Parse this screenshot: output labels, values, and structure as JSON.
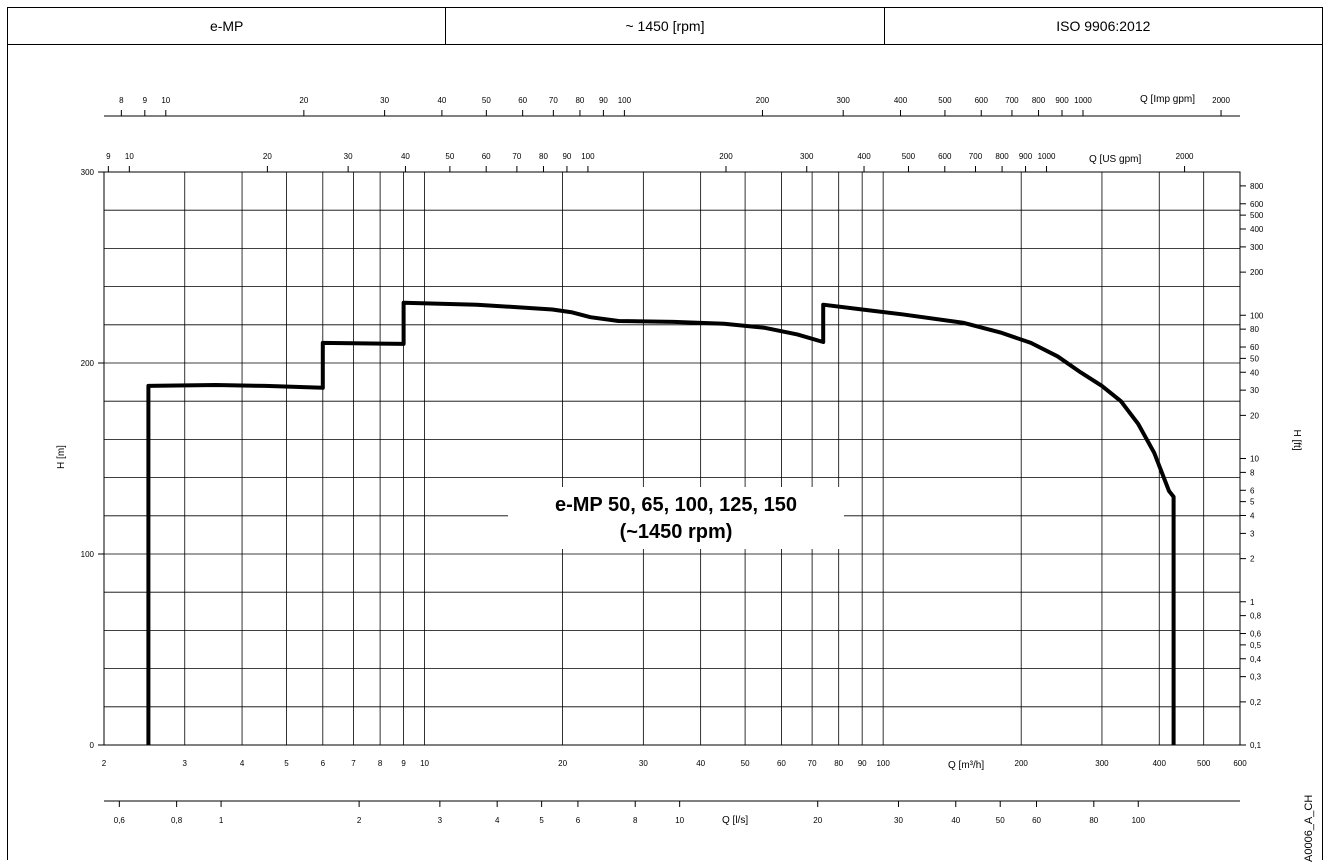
{
  "header": {
    "model": "e-MP",
    "speed": "~ 1450 [rpm]",
    "standard": "ISO 9906:2012"
  },
  "drawing_code": "A0006_A_CH",
  "chart_data": {
    "type": "line",
    "title_line1": "e-MP 50, 65, 100, 125, 150",
    "title_line2": "(~1450 rpm)",
    "x_scale": "log",
    "y_scale": "linear",
    "xlim": [
      2,
      600
    ],
    "ylim": [
      0,
      300
    ],
    "grid": true,
    "xlabel": "Q [m³/h]",
    "ylabel": "H [m]",
    "y2label": "H [ft]",
    "imp_label": "Q [Imp gpm]",
    "us_label": "Q [US gpm]",
    "ls_label": "Q [l/s]",
    "x_ticks": [
      {
        "v": 2,
        "l": "2"
      },
      {
        "v": 3,
        "l": "3"
      },
      {
        "v": 4,
        "l": "4"
      },
      {
        "v": 5,
        "l": "5"
      },
      {
        "v": 6,
        "l": "6"
      },
      {
        "v": 7,
        "l": "7"
      },
      {
        "v": 8,
        "l": "8"
      },
      {
        "v": 9,
        "l": "9"
      },
      {
        "v": 10,
        "l": "10"
      },
      {
        "v": 20,
        "l": "20"
      },
      {
        "v": 30,
        "l": "30"
      },
      {
        "v": 40,
        "l": "40"
      },
      {
        "v": 50,
        "l": "50"
      },
      {
        "v": 60,
        "l": "60"
      },
      {
        "v": 70,
        "l": "70"
      },
      {
        "v": 80,
        "l": "80"
      },
      {
        "v": 90,
        "l": "90"
      },
      {
        "v": 100,
        "l": "100"
      },
      {
        "v": 200,
        "l": "200"
      },
      {
        "v": 300,
        "l": "300"
      },
      {
        "v": 400,
        "l": "400"
      },
      {
        "v": 500,
        "l": "500"
      },
      {
        "v": 600,
        "l": "600"
      }
    ],
    "y_ticks": [
      {
        "v": 0,
        "l": "0"
      },
      {
        "v": 100,
        "l": "100"
      },
      {
        "v": 200,
        "l": "200"
      },
      {
        "v": 300,
        "l": "300"
      }
    ],
    "y_grid": [
      0,
      20,
      40,
      60,
      80,
      100,
      120,
      140,
      160,
      180,
      200,
      220,
      240,
      260,
      280,
      300
    ],
    "imp_ticks": [
      {
        "v": 8,
        "l": "8"
      },
      {
        "v": 9,
        "l": "9"
      },
      {
        "v": 10,
        "l": "10"
      },
      {
        "v": 20,
        "l": "20"
      },
      {
        "v": 30,
        "l": "30"
      },
      {
        "v": 40,
        "l": "40"
      },
      {
        "v": 50,
        "l": "50"
      },
      {
        "v": 60,
        "l": "60"
      },
      {
        "v": 70,
        "l": "70"
      },
      {
        "v": 80,
        "l": "80"
      },
      {
        "v": 90,
        "l": "90"
      },
      {
        "v": 100,
        "l": "100"
      },
      {
        "v": 200,
        "l": "200"
      },
      {
        "v": 300,
        "l": "300"
      },
      {
        "v": 400,
        "l": "400"
      },
      {
        "v": 500,
        "l": "500"
      },
      {
        "v": 600,
        "l": "600"
      },
      {
        "v": 700,
        "l": "700"
      },
      {
        "v": 800,
        "l": "800"
      },
      {
        "v": 900,
        "l": "900"
      },
      {
        "v": 1000,
        "l": "1000"
      },
      {
        "v": 2000,
        "l": "2000"
      }
    ],
    "us_ticks": [
      {
        "v": 9,
        "l": "9"
      },
      {
        "v": 10,
        "l": "10"
      },
      {
        "v": 20,
        "l": "20"
      },
      {
        "v": 30,
        "l": "30"
      },
      {
        "v": 40,
        "l": "40"
      },
      {
        "v": 50,
        "l": "50"
      },
      {
        "v": 60,
        "l": "60"
      },
      {
        "v": 70,
        "l": "70"
      },
      {
        "v": 80,
        "l": "80"
      },
      {
        "v": 90,
        "l": "90"
      },
      {
        "v": 100,
        "l": "100"
      },
      {
        "v": 200,
        "l": "200"
      },
      {
        "v": 300,
        "l": "300"
      },
      {
        "v": 400,
        "l": "400"
      },
      {
        "v": 500,
        "l": "500"
      },
      {
        "v": 600,
        "l": "600"
      },
      {
        "v": 700,
        "l": "700"
      },
      {
        "v": 800,
        "l": "800"
      },
      {
        "v": 900,
        "l": "900"
      },
      {
        "v": 1000,
        "l": "1000"
      },
      {
        "v": 2000,
        "l": "2000"
      }
    ],
    "ls_ticks": [
      {
        "v": 0.6,
        "l": "0,6"
      },
      {
        "v": 0.8,
        "l": "0,8"
      },
      {
        "v": 1,
        "l": "1"
      },
      {
        "v": 2,
        "l": "2"
      },
      {
        "v": 3,
        "l": "3"
      },
      {
        "v": 4,
        "l": "4"
      },
      {
        "v": 5,
        "l": "5"
      },
      {
        "v": 6,
        "l": "6"
      },
      {
        "v": 8,
        "l": "8"
      },
      {
        "v": 10,
        "l": "10"
      },
      {
        "v": 20,
        "l": "20"
      },
      {
        "v": 30,
        "l": "30"
      },
      {
        "v": 40,
        "l": "40"
      },
      {
        "v": 50,
        "l": "50"
      },
      {
        "v": 60,
        "l": "60"
      },
      {
        "v": 80,
        "l": "80"
      },
      {
        "v": 100,
        "l": "100"
      }
    ],
    "ft_ticks": [
      {
        "v": 800,
        "l": "800"
      },
      {
        "v": 600,
        "l": "600"
      },
      {
        "v": 500,
        "l": "500"
      },
      {
        "v": 400,
        "l": "400"
      },
      {
        "v": 300,
        "l": "300"
      },
      {
        "v": 200,
        "l": "200"
      },
      {
        "v": 100,
        "l": "100"
      },
      {
        "v": 80,
        "l": "80"
      },
      {
        "v": 60,
        "l": "60"
      },
      {
        "v": 50,
        "l": "50"
      },
      {
        "v": 40,
        "l": "40"
      },
      {
        "v": 30,
        "l": "30"
      },
      {
        "v": 20,
        "l": "20"
      },
      {
        "v": 10,
        "l": "10"
      },
      {
        "v": 8,
        "l": "8"
      },
      {
        "v": 6,
        "l": "6"
      },
      {
        "v": 5,
        "l": "5"
      },
      {
        "v": 4,
        "l": "4"
      },
      {
        "v": 3,
        "l": "3"
      },
      {
        "v": 2,
        "l": "2"
      },
      {
        "v": 1,
        "l": "1"
      },
      {
        "v": 0.8,
        "l": "0,8"
      },
      {
        "v": 0.6,
        "l": "0,6"
      },
      {
        "v": 0.5,
        "l": "0,5"
      },
      {
        "v": 0.4,
        "l": "0,4"
      },
      {
        "v": 0.3,
        "l": "0,3"
      },
      {
        "v": 0.2,
        "l": "0,2"
      },
      {
        "v": 0.1,
        "l": "0,1"
      }
    ],
    "series": [
      {
        "values": [
          [
            2.5,
            0
          ],
          [
            2.5,
            188
          ],
          [
            3.5,
            188.5
          ],
          [
            4.5,
            188
          ],
          [
            6,
            187
          ],
          [
            6,
            210.5
          ],
          [
            9,
            210
          ],
          [
            9,
            231.5
          ],
          [
            13,
            230.5
          ],
          [
            19,
            228
          ],
          [
            21,
            226.5
          ],
          [
            23,
            224
          ],
          [
            26.5,
            222
          ],
          [
            35,
            221.5
          ],
          [
            45,
            220.5
          ],
          [
            55,
            218.5
          ],
          [
            65,
            215
          ],
          [
            74,
            211
          ],
          [
            74,
            230.5
          ],
          [
            90,
            228
          ],
          [
            110,
            225.5
          ],
          [
            150,
            221
          ],
          [
            180,
            216
          ],
          [
            210,
            210.5
          ],
          [
            240,
            203.5
          ],
          [
            270,
            195
          ],
          [
            300,
            188
          ],
          [
            330,
            180
          ],
          [
            360,
            168
          ],
          [
            390,
            153
          ],
          [
            420,
            133
          ],
          [
            430,
            130
          ],
          [
            430,
            0
          ]
        ]
      }
    ]
  }
}
